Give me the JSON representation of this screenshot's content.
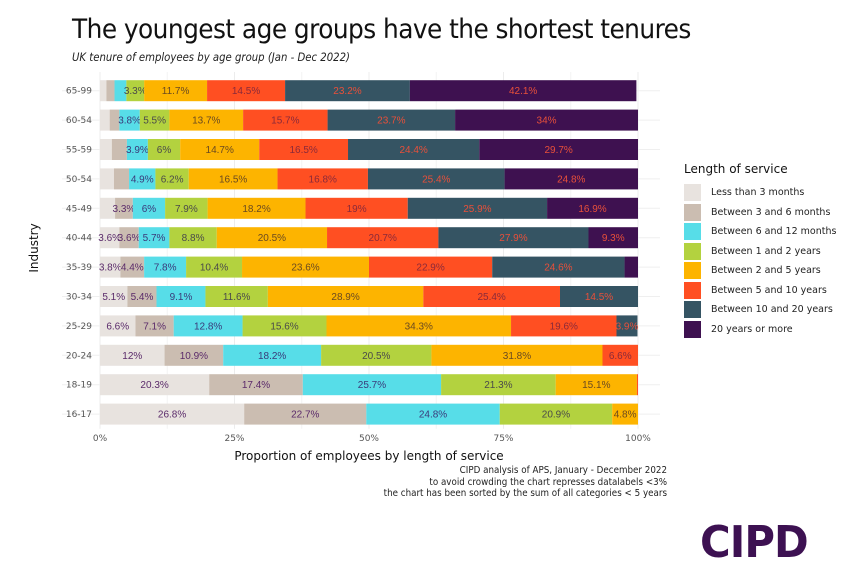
{
  "header": {
    "title": "The youngest age groups have the shortest tenures",
    "subtitle": "UK tenure of employees by age group (Jan - Dec 2022)"
  },
  "caption": {
    "lines": [
      "CIPD analysis of APS, January - December 2022",
      "to avoid crowding the chart represses datalabels <3%",
      "the chart has been sorted by the sum of all categories < 5 years"
    ]
  },
  "logo": {
    "text": "CIPD",
    "color": "#3d1152"
  },
  "chart_data": {
    "type": "bar",
    "orientation": "horizontal",
    "stacked": "percent",
    "title": "The youngest age groups have the shortest tenures",
    "subtitle": "UK tenure of employees by age group (Jan - Dec 2022)",
    "xlabel": "Proportion of employees by length of service",
    "ylabel": "Industry",
    "xlim": [
      0,
      100
    ],
    "xticks": [
      "0%",
      "25%",
      "50%",
      "75%",
      "100%"
    ],
    "grid": true,
    "legend_title": "Length of service",
    "legend_position": "right",
    "label_threshold": 3,
    "categories": [
      "65-99",
      "60-54",
      "55-59",
      "50-54",
      "45-49",
      "40-44",
      "35-39",
      "30-34",
      "25-29",
      "20-24",
      "18-19",
      "16-17"
    ],
    "series": [
      {
        "name": "Less than 3 months",
        "color": "#e8e3df",
        "label_color": "#5a2a6a",
        "values": [
          1.2,
          1.8,
          2.2,
          2.6,
          2.8,
          3.6,
          3.8,
          5.1,
          6.6,
          12,
          20.3,
          26.8
        ]
      },
      {
        "name": "Between 3 and 6 months",
        "color": "#cbbdb1",
        "label_color": "#5a2a6a",
        "values": [
          1.5,
          1.8,
          2.8,
          2.8,
          3.3,
          3.6,
          4.4,
          5.4,
          7.1,
          10.9,
          17.4,
          22.7
        ]
      },
      {
        "name": "Between 6 and 12 months",
        "color": "#57dde8",
        "label_color": "#3a3a7a",
        "values": [
          2.2,
          3.8,
          3.9,
          4.9,
          6,
          5.7,
          7.8,
          9.1,
          12.8,
          18.2,
          25.7,
          24.8
        ]
      },
      {
        "name": "Between 1 and 2 years",
        "color": "#b3d23f",
        "label_color": "#4a4a4a",
        "values": [
          3.3,
          5.5,
          6,
          6.2,
          7.9,
          8.8,
          10.4,
          11.6,
          15.6,
          20.5,
          21.3,
          20.9
        ]
      },
      {
        "name": "Between 2 and 5 years",
        "color": "#fdb400",
        "label_color": "#6a4a20",
        "values": [
          11.7,
          13.7,
          14.7,
          16.5,
          18.2,
          20.5,
          23.6,
          28.9,
          34.3,
          31.8,
          15.1,
          4.8
        ]
      },
      {
        "name": "Between 5 and 10 years",
        "color": "#ff4f22",
        "label_color": "#8a2a3a",
        "values": [
          14.5,
          15.7,
          16.5,
          16.8,
          19,
          20.7,
          22.9,
          25.4,
          19.6,
          6.6,
          0.3,
          0
        ]
      },
      {
        "name": "Between 10 and 20 years",
        "color": "#355463",
        "label_color": "#e8503a",
        "values": [
          23.2,
          23.7,
          24.4,
          25.4,
          25.9,
          27.9,
          24.6,
          14.5,
          3.9,
          0,
          0,
          0
        ]
      },
      {
        "name": "20 years or more",
        "color": "#3e1150",
        "label_color": "#e8503a",
        "values": [
          42.1,
          34,
          29.7,
          24.8,
          16.9,
          9.3,
          2.5,
          0,
          0,
          0,
          0,
          0
        ]
      }
    ]
  }
}
